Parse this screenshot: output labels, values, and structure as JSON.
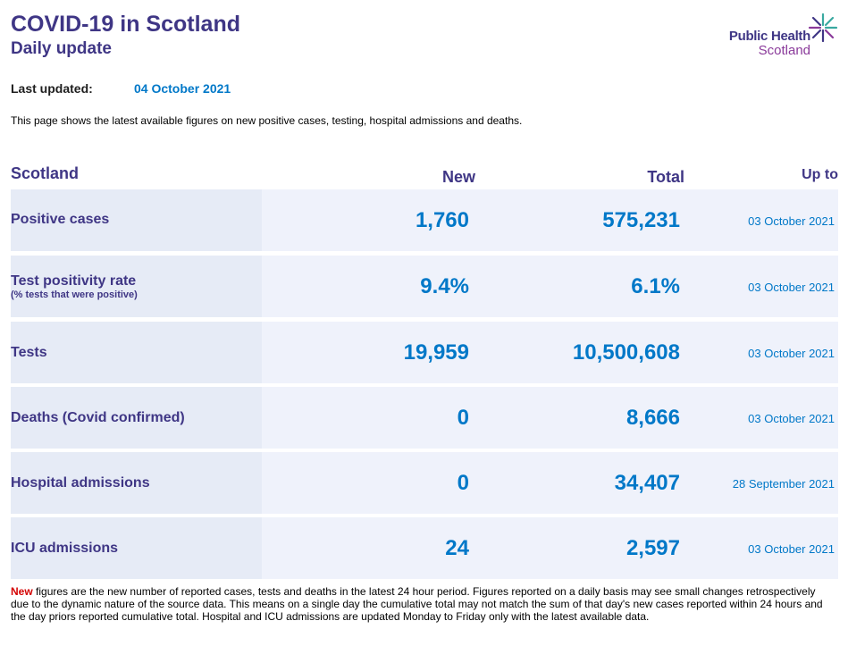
{
  "header": {
    "title": "COVID-19 in Scotland",
    "subtitle": "Daily update",
    "logo_line1": "Public Health",
    "logo_line2": "Scotland"
  },
  "meta": {
    "last_updated_label": "Last updated:",
    "last_updated_date": "04 October 2021",
    "intro": "This page shows the latest available figures on new positive cases, testing, hospital admissions and deaths."
  },
  "table": {
    "col_region": "Scotland",
    "col_new": "New",
    "col_total": "Total",
    "col_upto": "Up to",
    "rows": [
      {
        "label": "Positive cases",
        "sub": "",
        "new": "1,760",
        "total": "575,231",
        "date": "03 October 2021"
      },
      {
        "label": "Test positivity rate",
        "sub": "(% tests that were positive)",
        "new": "9.4%",
        "total": "6.1%",
        "date": "03 October 2021"
      },
      {
        "label": "Tests",
        "sub": "",
        "new": "19,959",
        "total": "10,500,608",
        "date": "03 October 2021"
      },
      {
        "label": "Deaths (Covid confirmed)",
        "sub": "",
        "new": "0",
        "total": "8,666",
        "date": "03 October 2021"
      },
      {
        "label": "Hospital admissions",
        "sub": "",
        "new": "0",
        "total": "34,407",
        "date": "28 September 2021"
      },
      {
        "label": "ICU admissions",
        "sub": "",
        "new": "24",
        "total": "2,597",
        "date": "03 October 2021"
      }
    ]
  },
  "footer": {
    "new_word": "New",
    "text": " figures are the new number of reported cases, tests and deaths in the latest 24 hour period. Figures reported on a daily basis may see small changes retrospectively due to the dynamic nature of the source data. This means on a single day the cumulative total may not match the sum of that day's new cases reported within 24 hours and the day priors reported cumulative total. Hospital and ICU admissions are updated Monday to Friday only with the latest available data."
  },
  "colors": {
    "brand_purple": "#3f3685",
    "value_blue": "#0078c8",
    "new_red": "#d40000",
    "row_bg": "#eff2fb"
  }
}
